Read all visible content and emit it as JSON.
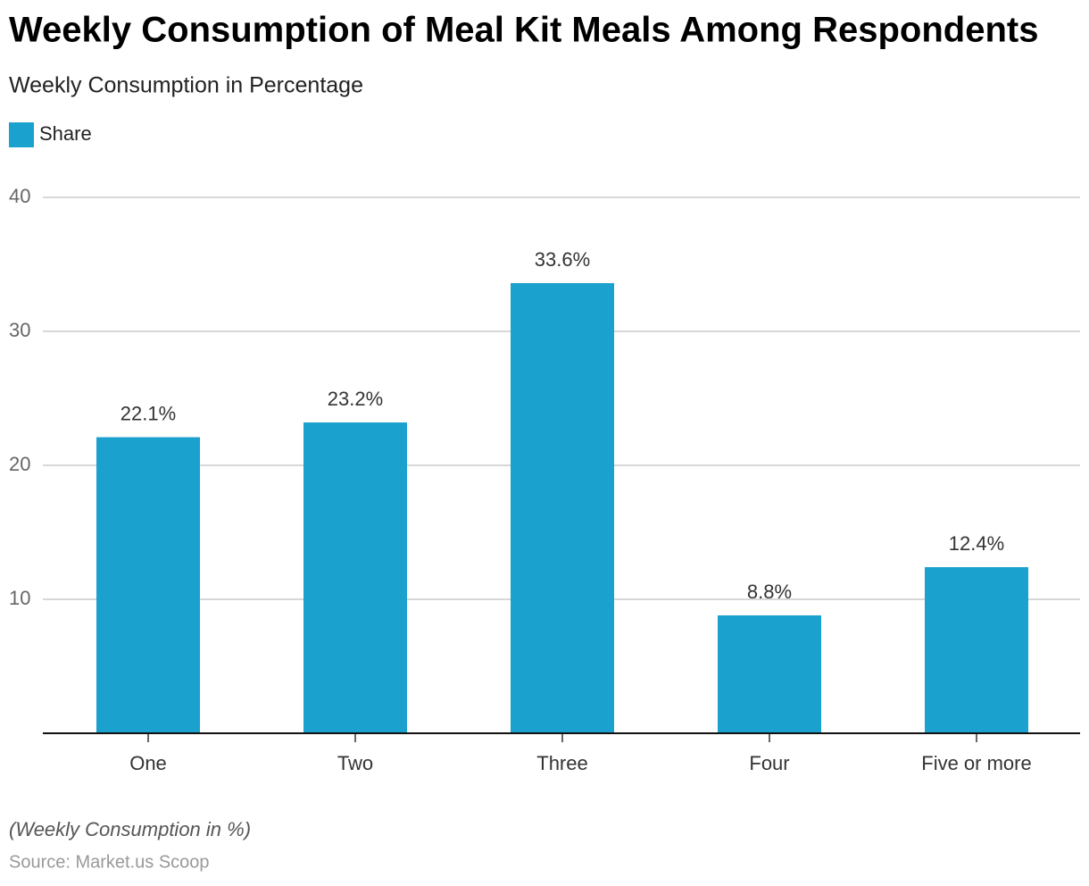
{
  "chart_data": {
    "type": "bar",
    "title": "Weekly Consumption of Meal Kit Meals Among Respondents",
    "subtitle": "Weekly Consumption in Percentage",
    "categories": [
      "One",
      "Two",
      "Three",
      "Four",
      "Five or more"
    ],
    "series": [
      {
        "name": "Share",
        "color": "#1ba1ce",
        "values": [
          22.1,
          23.2,
          33.6,
          8.8,
          12.4
        ],
        "value_labels": [
          "22.1%",
          "23.2%",
          "33.6%",
          "8.8%",
          "12.4%"
        ]
      }
    ],
    "ylim": [
      0,
      40
    ],
    "yticks": [
      10,
      20,
      30,
      40
    ],
    "grid": true,
    "note": "(Weekly Consumption in %)",
    "source": "Source: Market.us Scoop"
  }
}
